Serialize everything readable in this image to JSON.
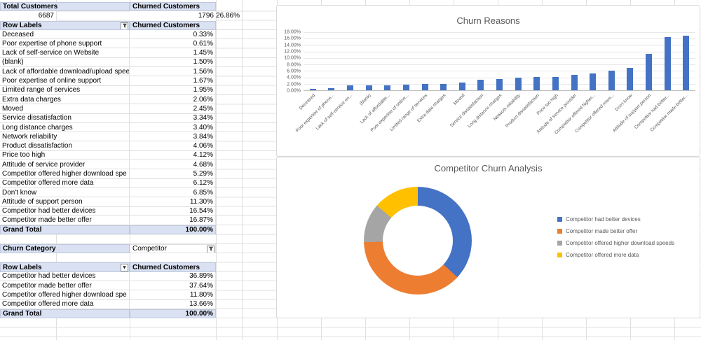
{
  "icons": {
    "dropdown_arrow": "▼"
  },
  "summary": {
    "total_label": "Total Customers",
    "churned_label": "Churned Customers",
    "total_value": "6687",
    "churned_value": "1796",
    "churn_rate": "26.86%"
  },
  "reasons_table": {
    "header": {
      "col1": "Row Labels",
      "col2": "Churned Customers"
    },
    "rows": [
      {
        "label": "Deceased",
        "value": "0.33%"
      },
      {
        "label": "Poor expertise of phone support",
        "value": "0.61%"
      },
      {
        "label": "Lack of self-service on Website",
        "value": "1.45%"
      },
      {
        "label": "(blank)",
        "value": "1.50%"
      },
      {
        "label": "Lack of affordable download/upload spee",
        "value": "1.56%"
      },
      {
        "label": "Poor expertise of online support",
        "value": "1.67%"
      },
      {
        "label": "Limited range of services",
        "value": "1.95%"
      },
      {
        "label": "Extra data charges",
        "value": "2.06%"
      },
      {
        "label": "Moved",
        "value": "2.45%"
      },
      {
        "label": "Service dissatisfaction",
        "value": "3.34%"
      },
      {
        "label": "Long distance charges",
        "value": "3.40%"
      },
      {
        "label": "Network reliability",
        "value": "3.84%"
      },
      {
        "label": "Product dissatisfaction",
        "value": "4.06%"
      },
      {
        "label": "Price too high",
        "value": "4.12%"
      },
      {
        "label": "Attitude of service provider",
        "value": "4.68%"
      },
      {
        "label": "Competitor offered higher download spe",
        "value": "5.29%"
      },
      {
        "label": "Competitor offered more data",
        "value": "6.12%"
      },
      {
        "label": "Don't know",
        "value": "6.85%"
      },
      {
        "label": "Attitude of support person",
        "value": "11.30%"
      },
      {
        "label": "Competitor had better devices",
        "value": "16.54%"
      },
      {
        "label": "Competitor made better offer",
        "value": "16.87%"
      }
    ],
    "grand_total": {
      "label": "Grand Total",
      "value": "100.00%"
    }
  },
  "filter": {
    "label": "Churn Category",
    "value": "Competitor"
  },
  "competitor_table": {
    "header": {
      "col1": "Row Labels",
      "col2": "Churned Customers"
    },
    "rows": [
      {
        "label": "Competitor had better devices",
        "value": "36.89%"
      },
      {
        "label": "Competitor made better offer",
        "value": "37.64%"
      },
      {
        "label": "Competitor offered higher download spe",
        "value": "11.80%"
      },
      {
        "label": "Competitor offered more data",
        "value": "13.66%"
      }
    ],
    "grand_total": {
      "label": "Grand Total",
      "value": "100.00%"
    }
  },
  "chart_data": [
    {
      "type": "bar",
      "title": "Churn Reasons",
      "categories": [
        "Deceased",
        "Poor expertise of phone...",
        "Lack of self-service on...",
        "(blank)",
        "Lack of affordable...",
        "Poor expertise of online...",
        "Limited range of services",
        "Extra data charges",
        "Moved",
        "Service dissatisfaction",
        "Long distance charges",
        "Network reliability",
        "Product dissatisfaction",
        "Price too high",
        "Attitude of service provider",
        "Competitor offered higher...",
        "Competitor offered more...",
        "Don't know",
        "Attitude of support person",
        "Competitor had better...",
        "Competitor made better..."
      ],
      "values": [
        0.33,
        0.61,
        1.45,
        1.5,
        1.56,
        1.67,
        1.95,
        2.06,
        2.45,
        3.34,
        3.4,
        3.84,
        4.06,
        4.12,
        4.68,
        5.29,
        6.12,
        6.85,
        11.3,
        16.54,
        16.87
      ],
      "ylim": [
        0,
        18
      ],
      "ytick_step": 2,
      "yticks": [
        "18.00%",
        "16.00%",
        "14.00%",
        "12.00%",
        "10.00%",
        "8.00%",
        "6.00%",
        "4.00%",
        "2.00%",
        "0.00%"
      ],
      "bar_color": "#4472c4",
      "grid": true,
      "legend_position": "none"
    },
    {
      "type": "pie",
      "subtype": "donut",
      "title": "Competitor Churn Analysis",
      "categories": [
        "Competitor had better devices",
        "Competitor made better offer",
        "Competitor offered higher download speeds",
        "Competitor offered more data"
      ],
      "values": [
        36.89,
        37.64,
        11.8,
        13.66
      ],
      "colors": [
        "#4472c4",
        "#ed7d31",
        "#a5a5a5",
        "#ffc000"
      ],
      "legend_position": "right"
    }
  ]
}
